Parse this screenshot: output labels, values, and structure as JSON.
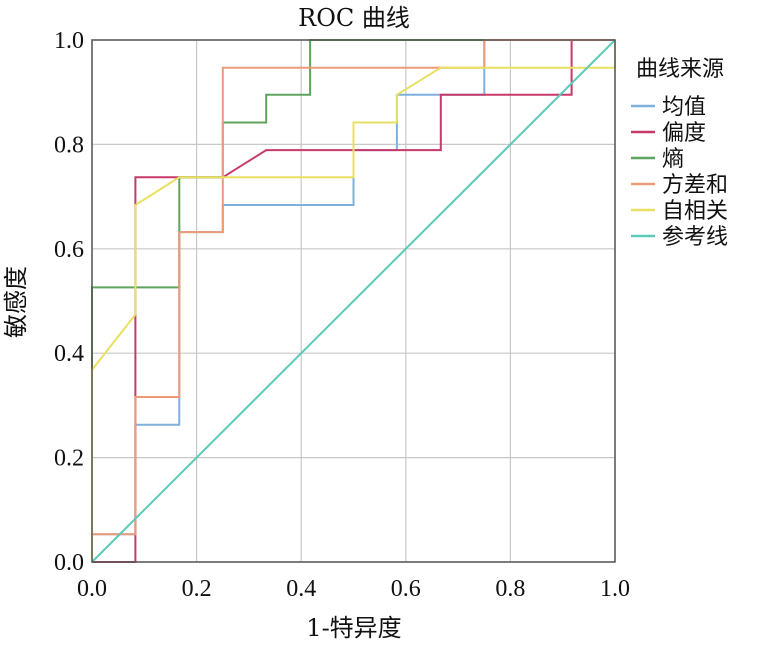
{
  "chart_data": {
    "type": "line",
    "title": "ROC 曲线",
    "xlabel": "1-特异度",
    "ylabel": "敏感度",
    "xlim": [
      0,
      1
    ],
    "ylim": [
      0,
      1
    ],
    "xticks": [
      "0.0",
      "0.2",
      "0.4",
      "0.6",
      "0.8",
      "1.0"
    ],
    "yticks": [
      "0.0",
      "0.2",
      "0.4",
      "0.6",
      "0.8",
      "1.0"
    ],
    "grid": true,
    "legend_title": "曲线来源",
    "legend_position": "right",
    "series": [
      {
        "name": "均值",
        "color": "#7fb0dd",
        "points": [
          [
            0,
            0
          ],
          [
            0,
            0.053
          ],
          [
            0.083,
            0.053
          ],
          [
            0.083,
            0.263
          ],
          [
            0.167,
            0.263
          ],
          [
            0.167,
            0.632
          ],
          [
            0.25,
            0.632
          ],
          [
            0.25,
            0.684
          ],
          [
            0.5,
            0.684
          ],
          [
            0.5,
            0.789
          ],
          [
            0.583,
            0.789
          ],
          [
            0.583,
            0.895
          ],
          [
            0.75,
            0.895
          ],
          [
            0.75,
            1.0
          ],
          [
            1.0,
            1.0
          ]
        ]
      },
      {
        "name": "偏度",
        "color": "#c8386a",
        "points": [
          [
            0,
            0
          ],
          [
            0.083,
            0
          ],
          [
            0.083,
            0.737
          ],
          [
            0.25,
            0.737
          ],
          [
            0.333,
            0.789
          ],
          [
            0.667,
            0.789
          ],
          [
            0.667,
            0.895
          ],
          [
            0.917,
            0.895
          ],
          [
            0.917,
            1.0
          ],
          [
            1.0,
            1.0
          ]
        ]
      },
      {
        "name": "熵",
        "color": "#5ea35e",
        "points": [
          [
            0,
            0
          ],
          [
            0,
            0.526
          ],
          [
            0.167,
            0.526
          ],
          [
            0.167,
            0.737
          ],
          [
            0.25,
            0.737
          ],
          [
            0.25,
            0.842
          ],
          [
            0.333,
            0.842
          ],
          [
            0.333,
            0.895
          ],
          [
            0.417,
            0.895
          ],
          [
            0.417,
            1.0
          ],
          [
            1.0,
            1.0
          ]
        ]
      },
      {
        "name": "方差和",
        "color": "#ee9a78",
        "points": [
          [
            0,
            0
          ],
          [
            0,
            0.053
          ],
          [
            0.083,
            0.053
          ],
          [
            0.083,
            0.316
          ],
          [
            0.167,
            0.316
          ],
          [
            0.167,
            0.632
          ],
          [
            0.25,
            0.632
          ],
          [
            0.25,
            0.947
          ],
          [
            0.75,
            0.947
          ],
          [
            0.75,
            1.0
          ],
          [
            1.0,
            1.0
          ]
        ]
      },
      {
        "name": "自相关",
        "color": "#e8e060",
        "points": [
          [
            0,
            0
          ],
          [
            0,
            0.368
          ],
          [
            0.083,
            0.474
          ],
          [
            0.083,
            0.684
          ],
          [
            0.167,
            0.737
          ],
          [
            0.5,
            0.737
          ],
          [
            0.5,
            0.842
          ],
          [
            0.583,
            0.842
          ],
          [
            0.583,
            0.895
          ],
          [
            0.667,
            0.947
          ],
          [
            1.0,
            0.947
          ],
          [
            1.0,
            1.0
          ]
        ]
      },
      {
        "name": "参考线",
        "color": "#5ccab8",
        "points": [
          [
            0,
            0
          ],
          [
            1,
            1
          ]
        ]
      }
    ]
  }
}
